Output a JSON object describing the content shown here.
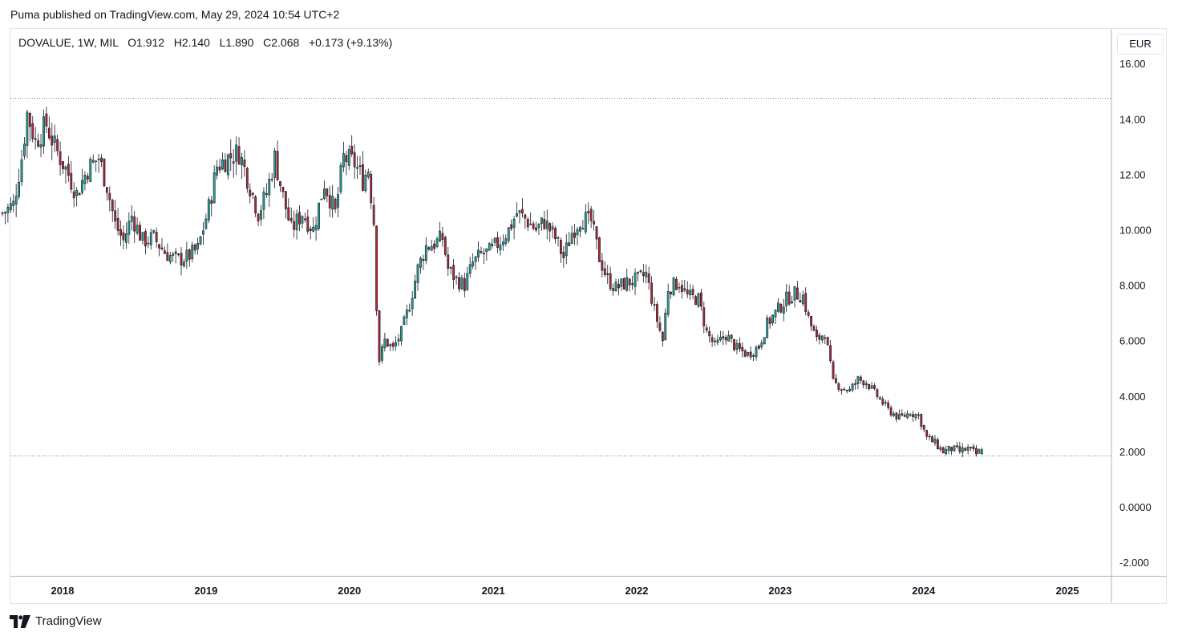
{
  "header": {
    "published": "Puma published on TradingView.com, May 29, 2024 10:54 UTC+2"
  },
  "legend": {
    "symbol": "DOVALUE, 1W, MIL",
    "o_label": "O",
    "o_value": "1.912",
    "h_label": "H",
    "h_value": "2.140",
    "l_label": "L",
    "l_value": "1.890",
    "c_label": "C",
    "c_value": "2.068",
    "change": "+0.173 (+9.13%)"
  },
  "currency": "EUR",
  "footer": {
    "brand": "TradingView",
    "logo_icon": "tradingview-logo-icon"
  },
  "colors": {
    "up": "#26a69a",
    "down": "#b22833",
    "wick": "#131722",
    "grid": "#e0e3eb",
    "hline": "#787b86"
  },
  "chart_data": {
    "type": "candlestick",
    "timeframe": "1W",
    "x_range": [
      "2017-08",
      "2025-02"
    ],
    "ylim": [
      -2.5,
      16.5
    ],
    "y_ticks": [
      "16.00",
      "14.00",
      "12.00",
      "10.000",
      "8.000",
      "6.000",
      "4.000",
      "2.000",
      "0.0000",
      "-2.000"
    ],
    "y_tick_values": [
      16,
      14,
      12,
      10,
      8,
      6,
      4,
      2,
      0,
      -2
    ],
    "x_ticks": [
      "2018",
      "2019",
      "2020",
      "2021",
      "2022",
      "2023",
      "2024",
      "2025"
    ],
    "horizontal_lines": [
      14.75,
      1.85
    ],
    "close_path": [
      [
        "2017-08-01",
        10.6
      ],
      [
        "2017-08-29",
        10.9
      ],
      [
        "2017-09-19",
        12.6
      ],
      [
        "2017-10-03",
        14.2
      ],
      [
        "2017-10-24",
        13.2
      ],
      [
        "2017-11-21",
        13.8
      ],
      [
        "2017-12-12",
        13.0
      ],
      [
        "2018-01-16",
        12.0
      ],
      [
        "2018-02-06",
        11.3
      ],
      [
        "2018-03-06",
        12.2
      ],
      [
        "2018-04-03",
        12.6
      ],
      [
        "2018-04-24",
        11.6
      ],
      [
        "2018-05-15",
        10.2
      ],
      [
        "2018-06-05",
        9.6
      ],
      [
        "2018-06-26",
        10.5
      ],
      [
        "2018-07-24",
        9.6
      ],
      [
        "2018-08-21",
        9.7
      ],
      [
        "2018-09-18",
        9.2
      ],
      [
        "2018-10-16",
        8.9
      ],
      [
        "2018-11-13",
        9.0
      ],
      [
        "2018-12-11",
        9.3
      ],
      [
        "2019-01-08",
        10.8
      ],
      [
        "2019-01-29",
        12.3
      ],
      [
        "2019-02-26",
        12.6
      ],
      [
        "2019-03-26",
        12.8
      ],
      [
        "2019-04-16",
        11.9
      ],
      [
        "2019-05-14",
        10.6
      ],
      [
        "2019-06-04",
        11.3
      ],
      [
        "2019-06-25",
        12.6
      ],
      [
        "2019-07-16",
        11.2
      ],
      [
        "2019-08-06",
        10.0
      ],
      [
        "2019-09-03",
        10.6
      ],
      [
        "2019-10-01",
        10.0
      ],
      [
        "2019-10-29",
        11.7
      ],
      [
        "2019-11-26",
        10.6
      ],
      [
        "2019-12-17",
        12.6
      ],
      [
        "2020-01-14",
        12.4
      ],
      [
        "2020-02-04",
        11.8
      ],
      [
        "2020-02-18",
        12.2
      ],
      [
        "2020-03-03",
        10.3
      ],
      [
        "2020-03-10",
        7.3
      ],
      [
        "2020-03-17",
        5.3
      ],
      [
        "2020-03-31",
        6.0
      ],
      [
        "2020-04-21",
        5.7
      ],
      [
        "2020-05-12",
        6.3
      ],
      [
        "2020-06-02",
        7.3
      ],
      [
        "2020-06-23",
        8.6
      ],
      [
        "2020-07-14",
        9.4
      ],
      [
        "2020-08-04",
        9.5
      ],
      [
        "2020-08-25",
        9.7
      ],
      [
        "2020-09-08",
        8.6
      ],
      [
        "2020-09-29",
        8.2
      ],
      [
        "2020-10-20",
        8.0
      ],
      [
        "2020-11-10",
        8.8
      ],
      [
        "2020-12-01",
        9.1
      ],
      [
        "2020-12-22",
        9.2
      ],
      [
        "2021-01-19",
        9.6
      ],
      [
        "2021-02-09",
        10.0
      ],
      [
        "2021-03-02",
        10.6
      ],
      [
        "2021-03-23",
        10.4
      ],
      [
        "2021-04-20",
        10.0
      ],
      [
        "2021-05-11",
        10.3
      ],
      [
        "2021-06-08",
        9.7
      ],
      [
        "2021-06-29",
        9.0
      ],
      [
        "2021-07-20",
        9.9
      ],
      [
        "2021-08-10",
        10.4
      ],
      [
        "2021-09-07",
        10.3
      ],
      [
        "2021-09-28",
        9.0
      ],
      [
        "2021-10-19",
        8.2
      ],
      [
        "2021-11-09",
        7.9
      ],
      [
        "2021-12-07",
        8.1
      ],
      [
        "2022-01-04",
        8.2
      ],
      [
        "2022-01-25",
        8.4
      ],
      [
        "2022-02-15",
        7.1
      ],
      [
        "2022-03-08",
        6.0
      ],
      [
        "2022-03-22",
        7.9
      ],
      [
        "2022-04-19",
        8.1
      ],
      [
        "2022-05-10",
        7.6
      ],
      [
        "2022-06-07",
        7.5
      ],
      [
        "2022-06-28",
        6.3
      ],
      [
        "2022-07-19",
        5.8
      ],
      [
        "2022-08-16",
        6.2
      ],
      [
        "2022-09-13",
        5.7
      ],
      [
        "2022-10-11",
        5.5
      ],
      [
        "2022-11-08",
        5.8
      ],
      [
        "2022-11-29",
        6.6
      ],
      [
        "2022-12-20",
        7.0
      ],
      [
        "2023-01-17",
        7.5
      ],
      [
        "2023-02-07",
        7.7
      ],
      [
        "2023-02-28",
        7.6
      ],
      [
        "2023-03-14",
        6.8
      ],
      [
        "2023-04-04",
        6.0
      ],
      [
        "2023-04-25",
        6.3
      ],
      [
        "2023-05-16",
        4.5
      ],
      [
        "2023-06-06",
        4.3
      ],
      [
        "2023-06-27",
        4.2
      ],
      [
        "2023-07-18",
        4.6
      ],
      [
        "2023-08-08",
        4.5
      ],
      [
        "2023-09-05",
        4.0
      ],
      [
        "2023-10-03",
        3.5
      ],
      [
        "2023-10-31",
        3.2
      ],
      [
        "2023-11-28",
        3.4
      ],
      [
        "2023-12-19",
        3.3
      ],
      [
        "2024-01-09",
        2.5
      ],
      [
        "2024-01-30",
        2.3
      ],
      [
        "2024-02-20",
        2.0
      ],
      [
        "2024-03-12",
        2.1
      ],
      [
        "2024-04-02",
        2.0
      ],
      [
        "2024-04-23",
        2.1
      ],
      [
        "2024-05-14",
        1.9
      ],
      [
        "2024-05-28",
        2.068
      ]
    ],
    "last_candle": {
      "date": "2024-05-27",
      "open": 1.912,
      "high": 2.14,
      "low": 1.89,
      "close": 2.068
    }
  }
}
